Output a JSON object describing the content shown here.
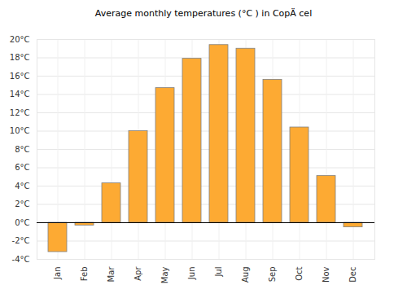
{
  "chart_data": {
    "type": "bar",
    "title": "Average monthly temperatures (°C ) in CopÄ cel",
    "categories": [
      "Jan",
      "Feb",
      "Mar",
      "Apr",
      "May",
      "Jun",
      "Jul",
      "Aug",
      "Sep",
      "Oct",
      "Nov",
      "Dec"
    ],
    "values": [
      -3.2,
      -0.3,
      4.3,
      10.0,
      14.7,
      17.9,
      19.4,
      19.0,
      15.6,
      10.4,
      5.1,
      -0.5
    ],
    "color": "#fdaa33",
    "ylim": [
      -4,
      20
    ],
    "yticks": [
      {
        "value": -4,
        "label": "-4°C"
      },
      {
        "value": -2,
        "label": "-2°C"
      },
      {
        "value": 0,
        "label": "0°C"
      },
      {
        "value": 2,
        "label": "2°C"
      },
      {
        "value": 4,
        "label": "4°C"
      },
      {
        "value": 6,
        "label": "6°C"
      },
      {
        "value": 8,
        "label": "8°C"
      },
      {
        "value": 10,
        "label": "10°C"
      },
      {
        "value": 12,
        "label": "12°C"
      },
      {
        "value": 14,
        "label": "14°C"
      },
      {
        "value": 16,
        "label": "16°C"
      },
      {
        "value": 18,
        "label": "18°C"
      },
      {
        "value": 20,
        "label": "20°C"
      }
    ],
    "grid": true
  }
}
